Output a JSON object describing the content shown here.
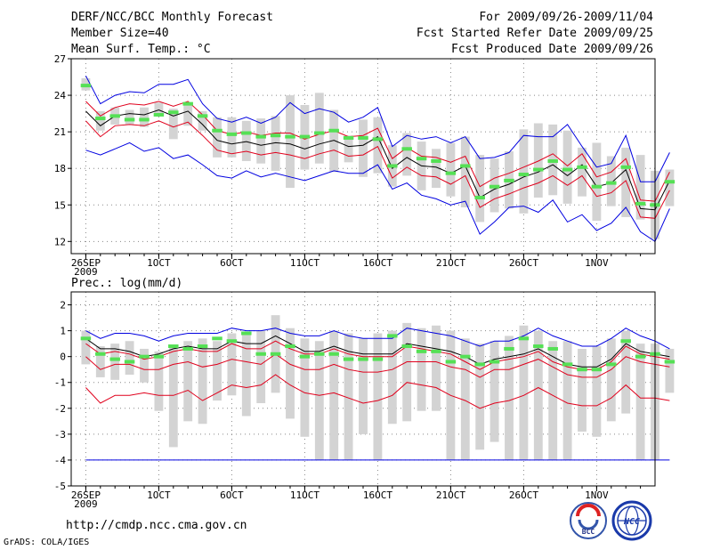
{
  "header": {
    "title": "DERF/NCC/BCC Monthly Forecast",
    "member_size": "Member Size=40",
    "variable": "Mean Surf. Temp.: °C",
    "period": "For 2009/09/26-2009/11/04",
    "started": "Fcst Started Refer Date 2009/09/25",
    "produced": "Fcst Produced Date 2009/09/26"
  },
  "footer": {
    "url": "http://cmdp.ncc.cma.gov.cn",
    "credit": "GrADS: COLA/IGES"
  },
  "logos": [
    {
      "icon": "bcc-logo-icon",
      "text": "BCC"
    },
    {
      "icon": "ncc-logo-icon",
      "text": "NCC"
    }
  ],
  "colors": {
    "ensemble_mean": "#000000",
    "spread": "#e0001c",
    "extreme": "#0000e0",
    "box": "#d3d3d3",
    "observed": "#55e055",
    "grid": "#888888"
  },
  "chart_data": [
    {
      "type": "line",
      "title": "Mean Surf. Temp.: °C",
      "xlabel": "",
      "ylabel": "°C",
      "ylim": [
        11,
        27
      ],
      "yticks": [
        12,
        15,
        18,
        21,
        24,
        27
      ],
      "x_ticks": [
        {
          "day": 0,
          "label": "26SEP",
          "sub": "2009"
        },
        {
          "day": 5,
          "label": "1OCT"
        },
        {
          "day": 10,
          "label": "6OCT"
        },
        {
          "day": 15,
          "label": "11OCT"
        },
        {
          "day": 20,
          "label": "16OCT"
        },
        {
          "day": 25,
          "label": "21OCT"
        },
        {
          "day": 30,
          "label": "26OCT"
        },
        {
          "day": 35,
          "label": "1NOV"
        }
      ],
      "x_range": [
        -1,
        39
      ],
      "series": [
        {
          "name": "ensemble mean",
          "values": [
            22.7,
            21.5,
            22.3,
            22.5,
            22.4,
            22.8,
            22.3,
            22.7,
            21.6,
            20.3,
            20.0,
            20.2,
            19.9,
            20.1,
            20.0,
            19.6,
            20.0,
            20.3,
            19.8,
            19.9,
            20.6,
            18.0,
            18.9,
            18.2,
            18.1,
            17.6,
            18.2,
            15.6,
            16.3,
            16.7,
            17.3,
            17.7,
            18.3,
            17.4,
            18.3,
            16.5,
            16.8,
            17.9,
            14.7,
            14.6,
            17.0
          ]
        },
        {
          "name": "spread upper",
          "values": [
            23.5,
            22.3,
            23.0,
            23.3,
            23.2,
            23.5,
            23.1,
            23.5,
            22.4,
            21.1,
            20.8,
            21.0,
            20.7,
            20.9,
            20.9,
            20.4,
            20.8,
            21.1,
            20.6,
            20.7,
            21.3,
            18.8,
            19.7,
            19.0,
            18.9,
            18.5,
            19.0,
            16.5,
            17.2,
            17.6,
            18.1,
            18.6,
            19.2,
            18.2,
            19.2,
            17.3,
            17.7,
            18.8,
            15.4,
            15.3,
            17.7
          ]
        },
        {
          "name": "spread lower",
          "values": [
            21.9,
            20.6,
            21.5,
            21.6,
            21.5,
            21.9,
            21.4,
            21.8,
            20.7,
            19.5,
            19.2,
            19.4,
            19.1,
            19.3,
            19.1,
            18.8,
            19.2,
            19.5,
            19.0,
            19.1,
            19.8,
            17.2,
            18.1,
            17.4,
            17.3,
            16.7,
            17.4,
            14.8,
            15.5,
            15.9,
            16.4,
            16.8,
            17.4,
            16.6,
            17.4,
            15.7,
            16.0,
            17.0,
            14.0,
            13.9,
            16.2
          ]
        },
        {
          "name": "ensemble max",
          "values": [
            25.6,
            23.3,
            24.0,
            24.3,
            24.2,
            24.9,
            24.9,
            25.3,
            23.3,
            22.1,
            21.8,
            22.2,
            21.7,
            22.2,
            23.4,
            22.5,
            22.9,
            22.6,
            21.8,
            22.2,
            23.0,
            19.8,
            20.7,
            20.4,
            20.6,
            20.1,
            20.6,
            18.8,
            18.9,
            19.3,
            20.7,
            20.6,
            20.6,
            21.6,
            19.8,
            18.1,
            18.4,
            20.7,
            16.9,
            16.9,
            19.3
          ]
        },
        {
          "name": "ensemble min",
          "values": [
            19.5,
            19.1,
            19.6,
            20.1,
            19.4,
            19.7,
            18.8,
            19.1,
            18.3,
            17.4,
            17.2,
            17.8,
            17.3,
            17.6,
            17.3,
            17.0,
            17.4,
            17.8,
            17.6,
            17.6,
            18.3,
            16.3,
            16.8,
            15.8,
            15.5,
            15.0,
            15.3,
            12.6,
            13.6,
            14.8,
            14.9,
            14.4,
            15.4,
            13.6,
            14.2,
            12.9,
            13.5,
            14.8,
            12.8,
            12.0,
            14.7
          ]
        }
      ],
      "boxes": [
        [
          24.4,
          25.4
        ],
        [
          21.1,
          22.7
        ],
        [
          21.6,
          23.0
        ],
        [
          21.6,
          22.8
        ],
        [
          21.4,
          23.0
        ],
        [
          22.3,
          23.4
        ],
        [
          20.4,
          22.9
        ],
        [
          21.5,
          23.2
        ],
        [
          21.1,
          22.7
        ],
        [
          18.9,
          22.2
        ],
        [
          18.9,
          22.2
        ],
        [
          18.6,
          21.9
        ],
        [
          18.4,
          22.1
        ],
        [
          17.8,
          22.3
        ],
        [
          16.4,
          24.0
        ],
        [
          17.9,
          23.2
        ],
        [
          18.4,
          24.2
        ],
        [
          17.7,
          22.8
        ],
        [
          18.5,
          20.7
        ],
        [
          17.3,
          22.0
        ],
        [
          17.6,
          22.2
        ],
        [
          16.5,
          19.9
        ],
        [
          17.4,
          20.9
        ],
        [
          16.2,
          20.2
        ],
        [
          16.4,
          19.6
        ],
        [
          15.7,
          20.1
        ],
        [
          14.8,
          20.6
        ],
        [
          13.6,
          19.1
        ],
        [
          14.4,
          18.8
        ],
        [
          14.7,
          19.4
        ],
        [
          14.3,
          21.2
        ],
        [
          15.6,
          21.7
        ],
        [
          15.8,
          21.6
        ],
        [
          15.1,
          21.1
        ],
        [
          15.7,
          19.7
        ],
        [
          13.7,
          20.1
        ],
        [
          14.9,
          19.0
        ],
        [
          14.0,
          19.7
        ],
        [
          13.8,
          19.1
        ],
        [
          12.2,
          17.8
        ],
        [
          14.9,
          17.9
        ]
      ],
      "observed": [
        24.8,
        22.1,
        22.3,
        22.0,
        22.0,
        22.4,
        22.6,
        23.3,
        22.3,
        21.1,
        20.8,
        20.9,
        20.6,
        20.7,
        20.6,
        20.6,
        20.9,
        21.1,
        20.5,
        20.5,
        20.4,
        18.2,
        19.6,
        18.8,
        18.6,
        17.6,
        18.2,
        15.6,
        16.5,
        17.0,
        17.5,
        17.9,
        18.6,
        17.9,
        18.1,
        16.5,
        16.8,
        18.1,
        15.1,
        15.0,
        16.9
      ]
    },
    {
      "type": "line",
      "title": "Prec.: log(mm/d)",
      "xlabel": "",
      "ylabel": "log(mm/d)",
      "ylim": [
        -5,
        2.5
      ],
      "yticks": [
        -5,
        -4,
        -3,
        -2,
        -1,
        0,
        1,
        2
      ],
      "x_ticks": [
        {
          "day": 0,
          "label": "26SEP",
          "sub": "2009"
        },
        {
          "day": 5,
          "label": "1OCT"
        },
        {
          "day": 10,
          "label": "6OCT"
        },
        {
          "day": 15,
          "label": "11OCT"
        },
        {
          "day": 20,
          "label": "16OCT"
        },
        {
          "day": 25,
          "label": "21OCT"
        },
        {
          "day": 30,
          "label": "26OCT"
        },
        {
          "day": 35,
          "label": "1NOV"
        }
      ],
      "x_range": [
        -1,
        39
      ],
      "series": [
        {
          "name": "ensemble mean",
          "values": [
            0.7,
            0.3,
            0.3,
            0.2,
            0.0,
            0.1,
            0.3,
            0.4,
            0.3,
            0.3,
            0.6,
            0.5,
            0.5,
            0.8,
            0.5,
            0.2,
            0.2,
            0.4,
            0.2,
            0.1,
            0.1,
            0.1,
            0.5,
            0.4,
            0.3,
            0.2,
            0.0,
            -0.3,
            -0.1,
            0.0,
            0.1,
            0.3,
            0.0,
            -0.3,
            -0.4,
            -0.4,
            -0.1,
            0.5,
            0.2,
            0.1,
            0.0
          ]
        },
        {
          "name": "spread upper",
          "values": [
            0.5,
            0.1,
            0.2,
            0.1,
            -0.1,
            0.0,
            0.2,
            0.3,
            0.2,
            0.2,
            0.5,
            0.3,
            0.3,
            0.6,
            0.3,
            0.1,
            0.1,
            0.3,
            0.1,
            0.0,
            0.0,
            0.0,
            0.4,
            0.3,
            0.2,
            0.1,
            -0.2,
            -0.5,
            -0.2,
            -0.1,
            0.0,
            0.2,
            -0.2,
            -0.4,
            -0.5,
            -0.5,
            -0.2,
            0.4,
            0.1,
            0.0,
            -0.1
          ]
        },
        {
          "name": "spread lower",
          "values": [
            0.0,
            -0.5,
            -0.3,
            -0.3,
            -0.5,
            -0.5,
            -0.3,
            -0.2,
            -0.4,
            -0.3,
            -0.1,
            -0.2,
            -0.3,
            0.1,
            -0.3,
            -0.5,
            -0.5,
            -0.3,
            -0.5,
            -0.6,
            -0.6,
            -0.5,
            -0.2,
            -0.2,
            -0.2,
            -0.4,
            -0.5,
            -0.8,
            -0.5,
            -0.5,
            -0.3,
            -0.1,
            -0.4,
            -0.7,
            -0.8,
            -0.8,
            -0.5,
            0.0,
            -0.2,
            -0.3,
            -0.4
          ]
        },
        {
          "name": "ensemble min (red)",
          "values": [
            -1.2,
            -1.8,
            -1.5,
            -1.5,
            -1.4,
            -1.5,
            -1.5,
            -1.3,
            -1.7,
            -1.4,
            -1.1,
            -1.2,
            -1.1,
            -0.7,
            -1.1,
            -1.4,
            -1.5,
            -1.4,
            -1.6,
            -1.8,
            -1.7,
            -1.5,
            -1.0,
            -1.1,
            -1.2,
            -1.5,
            -1.7,
            -2.0,
            -1.8,
            -1.7,
            -1.5,
            -1.2,
            -1.5,
            -1.8,
            -1.9,
            -1.9,
            -1.6,
            -1.1,
            -1.6,
            -1.6,
            -1.7
          ]
        },
        {
          "name": "ensemble max (blue)",
          "values": [
            1.0,
            0.7,
            0.9,
            0.9,
            0.8,
            0.6,
            0.8,
            0.9,
            0.9,
            0.9,
            1.1,
            1.0,
            1.0,
            1.1,
            0.9,
            0.8,
            0.8,
            1.0,
            0.8,
            0.7,
            0.7,
            0.7,
            1.1,
            1.0,
            0.9,
            0.8,
            0.6,
            0.4,
            0.6,
            0.6,
            0.8,
            1.1,
            0.8,
            0.6,
            0.4,
            0.4,
            0.7,
            1.1,
            0.8,
            0.6,
            0.3
          ]
        },
        {
          "name": "lower bound (blue)",
          "values": [
            -4,
            -4,
            -4,
            -4,
            -4,
            -4,
            -4,
            -4,
            -4,
            -4,
            -4,
            -4,
            -4,
            -4,
            -4,
            -4,
            -4,
            -4,
            -4,
            -4,
            -4,
            -4,
            -4,
            -4,
            -4,
            -4,
            -4,
            -4,
            -4,
            -4,
            -4,
            -4,
            -4,
            -4,
            -4,
            -4,
            -4,
            -4,
            -4,
            -4,
            -4
          ]
        }
      ],
      "boxes": [
        [
          -0.3,
          1.0
        ],
        [
          -0.8,
          0.4
        ],
        [
          -0.9,
          0.5
        ],
        [
          -0.7,
          0.6
        ],
        [
          -1.0,
          0.3
        ],
        [
          -2.1,
          0.2
        ],
        [
          -3.5,
          0.4
        ],
        [
          -2.5,
          0.6
        ],
        [
          -2.6,
          0.7
        ],
        [
          -1.7,
          0.6
        ],
        [
          -1.5,
          0.9
        ],
        [
          -2.3,
          0.9
        ],
        [
          -1.8,
          1.0
        ],
        [
          -1.4,
          1.6
        ],
        [
          -2.4,
          1.1
        ],
        [
          -3.1,
          0.7
        ],
        [
          -4.0,
          0.6
        ],
        [
          -4.0,
          1.0
        ],
        [
          -4.0,
          0.9
        ],
        [
          -3.0,
          0.7
        ],
        [
          -4.0,
          0.9
        ],
        [
          -2.6,
          1.0
        ],
        [
          -2.5,
          1.3
        ],
        [
          -2.1,
          1.1
        ],
        [
          -2.1,
          1.2
        ],
        [
          -4.0,
          1.0
        ],
        [
          -4.0,
          0.7
        ],
        [
          -3.6,
          0.5
        ],
        [
          -3.3,
          0.6
        ],
        [
          -4.0,
          0.8
        ],
        [
          -4.0,
          1.2
        ],
        [
          -4.0,
          1.0
        ],
        [
          -4.0,
          0.6
        ],
        [
          -4.0,
          0.6
        ],
        [
          -2.9,
          0.3
        ],
        [
          -3.1,
          0.4
        ],
        [
          -2.5,
          0.7
        ],
        [
          -2.2,
          1.0
        ],
        [
          -4.0,
          0.5
        ],
        [
          -4.0,
          0.5
        ],
        [
          -1.4,
          0.3
        ]
      ],
      "observed": [
        0.7,
        0.1,
        -0.1,
        -0.2,
        0.0,
        0.0,
        0.4,
        0.3,
        0.4,
        0.7,
        0.6,
        0.9,
        0.1,
        0.1,
        0.4,
        0.0,
        0.1,
        0.1,
        -0.1,
        -0.1,
        -0.1,
        0.8,
        0.4,
        0.2,
        0.2,
        -0.2,
        0.0,
        -0.3,
        -0.2,
        0.3,
        0.7,
        0.4,
        0.3,
        -0.3,
        -0.5,
        -0.5,
        -0.3,
        0.6,
        0.0,
        0.1,
        -0.2
      ]
    }
  ]
}
